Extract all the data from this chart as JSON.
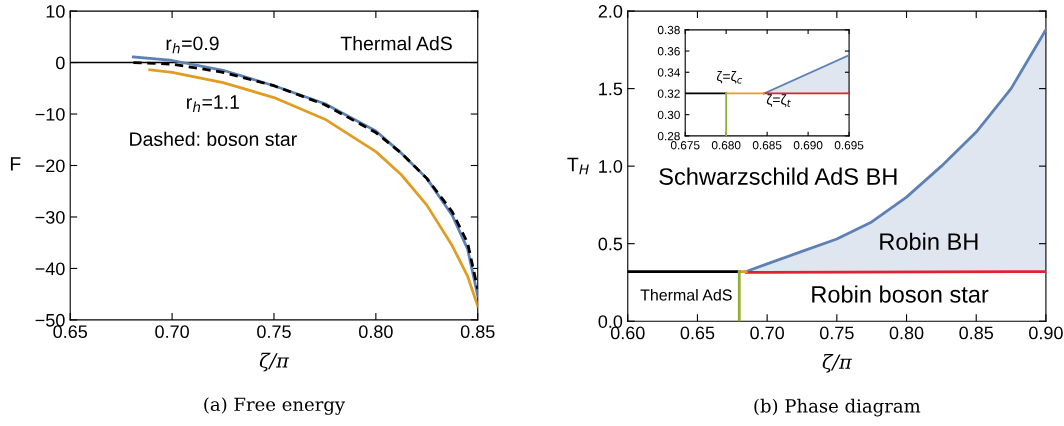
{
  "chart_data": [
    {
      "type": "line",
      "title": "(a) Free energy",
      "xlabel": "ζ/π",
      "ylabel": "F",
      "xlim": [
        0.65,
        0.85
      ],
      "ylim": [
        -50,
        10
      ],
      "xticks": [
        {
          "value": 0.65,
          "label": "0.65"
        },
        {
          "value": 0.7,
          "label": "0.70"
        },
        {
          "value": 0.75,
          "label": "0.75"
        },
        {
          "value": 0.8,
          "label": "0.80"
        },
        {
          "value": 0.85,
          "label": "0.85"
        }
      ],
      "yticks": [
        {
          "value": -50,
          "label": "−50"
        },
        {
          "value": -40,
          "label": "−40"
        },
        {
          "value": -30,
          "label": "−30"
        },
        {
          "value": -20,
          "label": "−20"
        },
        {
          "value": -10,
          "label": "−10"
        },
        0,
        10
      ],
      "series": [
        {
          "color": "#5e81b5",
          "x": [
            0.681,
            0.7,
            0.725,
            0.75,
            0.775,
            0.8,
            0.8125,
            0.825,
            0.8375,
            0.845,
            0.85
          ],
          "values": [
            1.1,
            0.4,
            -1.5,
            -4.5,
            -8,
            -13.3,
            -17.6,
            -22.5,
            -29.7,
            -36.2,
            -45.3
          ]
        },
        {
          "color": "#e19c24",
          "x": [
            0.689,
            0.7,
            0.725,
            0.75,
            0.775,
            0.8,
            0.8125,
            0.825,
            0.8375,
            0.845,
            0.85
          ],
          "values": [
            -1.4,
            -1.9,
            -3.9,
            -6.8,
            -11,
            -17.3,
            -21.8,
            -27.7,
            -35.6,
            -41.5,
            -47.3
          ]
        },
        {
          "color": "#000000",
          "line_style": "dashed",
          "x": [
            0.681,
            0.7,
            0.725,
            0.75,
            0.775,
            0.8,
            0.8125,
            0.825,
            0.8375,
            0.845,
            0.85
          ],
          "values": [
            0,
            -0.3,
            -1.9,
            -4.5,
            -8.2,
            -13.6,
            -17.6,
            -22.5,
            -29,
            -35,
            -44
          ]
        }
      ],
      "ref_lines": [
        {
          "axis": "y",
          "value": 0,
          "label": "Thermal AdS",
          "color": "#000000"
        }
      ],
      "annotations": [
        "r$_{h}$=0.9",
        "r$_{h}$=1.1",
        "Dashed: boson star"
      ]
    },
    {
      "type": "line",
      "title": "(b) Phase diagram",
      "xlabel": "ζ/π",
      "ylabel": "T$_{H}$",
      "xlim": [
        0.6,
        0.9
      ],
      "ylim": [
        0,
        2.0
      ],
      "xticks": [
        {
          "value": 0.6,
          "label": "0.60"
        },
        {
          "value": 0.65,
          "label": "0.65"
        },
        {
          "value": 0.7,
          "label": "0.70"
        },
        {
          "value": 0.75,
          "label": "0.75"
        },
        {
          "value": 0.8,
          "label": "0.80"
        },
        {
          "value": 0.85,
          "label": "0.85"
        },
        {
          "value": 0.9,
          "label": "0.90"
        }
      ],
      "yticks": [
        {
          "value": 0,
          "label": "0.0"
        },
        0.5,
        {
          "value": 1,
          "label": "1.0"
        },
        1.5,
        {
          "value": 2,
          "label": "2.0"
        }
      ],
      "series": [
        {
          "color": "#5e81b5",
          "x": [
            0.685,
            0.7,
            0.725,
            0.75,
            0.775,
            0.8,
            0.825,
            0.85,
            0.875,
            0.9
          ],
          "values": [
            0.32,
            0.37,
            0.45,
            0.53,
            0.64,
            0.8,
            1.0,
            1.22,
            1.5,
            1.88
          ],
          "lower": [
            0.315,
            0.315,
            0.316,
            0.316,
            0.317,
            0.317,
            0.318,
            0.318,
            0.319,
            0.32
          ],
          "upper": [
            0.32,
            0.37,
            0.45,
            0.53,
            0.64,
            0.8,
            1.0,
            1.22,
            1.5,
            1.88
          ]
        },
        {
          "color": "#e5202e",
          "x": [
            0.685,
            0.9
          ],
          "values": [
            0.315,
            0.32
          ]
        },
        {
          "color": "#000000",
          "x": [
            0.6,
            0.68
          ],
          "values": [
            0.32,
            0.32
          ]
        },
        {
          "color": "#e19c24",
          "x": [
            0.68,
            0.685
          ],
          "values": [
            0.32,
            0.32
          ]
        },
        {
          "color": "#8fb032",
          "x": [
            0.68,
            0.68
          ],
          "values": [
            0,
            0.32
          ]
        }
      ],
      "annotations": [
        "Schwarzschild AdS BH",
        "Robin BH",
        "Robin boson star",
        "Thermal AdS"
      ]
    },
    {
      "type": "line",
      "xlim": [
        0.675,
        0.695
      ],
      "ylim": [
        0.28,
        0.38
      ],
      "xticks": [
        0.675,
        {
          "value": 0.68,
          "label": "0.680"
        },
        0.685,
        {
          "value": 0.69,
          "label": "0.690"
        },
        0.695
      ],
      "yticks": [
        {
          "value": 0.28,
          "label": "0.28"
        },
        {
          "value": 0.3,
          "label": "0.30"
        },
        0.32,
        0.34,
        0.36,
        0.38
      ],
      "series": [
        {
          "color": "#5e81b5",
          "x": [
            0.6846,
            0.695
          ],
          "values": [
            0.32,
            0.356
          ],
          "lower": [
            0.32,
            0.32
          ],
          "upper": [
            0.32,
            0.356
          ]
        },
        {
          "color": "#e5202e",
          "x": [
            0.6846,
            0.695
          ],
          "values": [
            0.32,
            0.32
          ]
        },
        {
          "color": "#000000",
          "x": [
            0.675,
            0.68
          ],
          "values": [
            0.32,
            0.32
          ]
        },
        {
          "color": "#e19c24",
          "x": [
            0.68,
            0.6846
          ],
          "values": [
            0.32,
            0.32
          ]
        },
        {
          "color": "#8fb032",
          "x": [
            0.68,
            0.68
          ],
          "values": [
            0.28,
            0.32
          ]
        }
      ],
      "annotations": [
        "ζ=ζ$_{c}$",
        "ζ=ζ$_{t}$"
      ]
    }
  ]
}
